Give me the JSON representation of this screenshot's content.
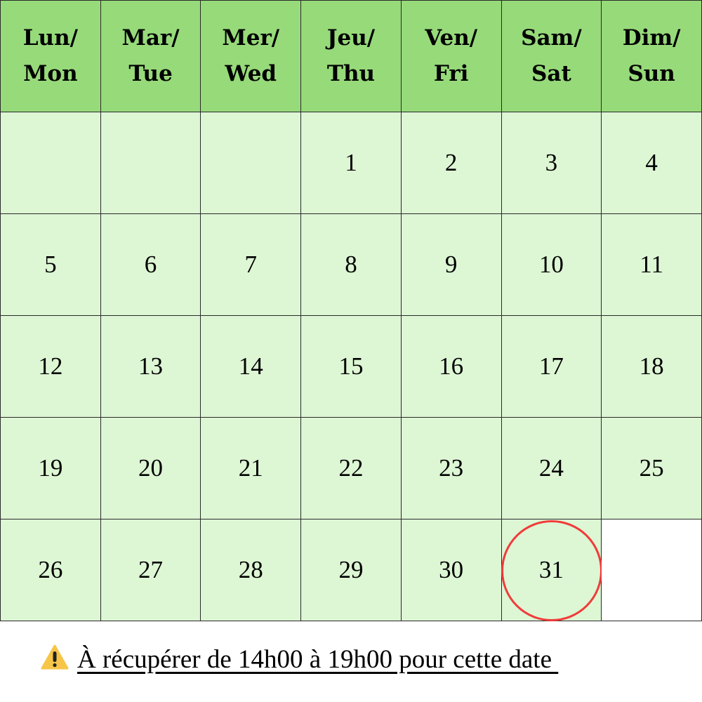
{
  "calendar": {
    "headers": [
      {
        "fr": "Lun/",
        "en": "Mon"
      },
      {
        "fr": "Mar/",
        "en": "Tue"
      },
      {
        "fr": "Mer/",
        "en": "Wed"
      },
      {
        "fr": "Jeu/",
        "en": "Thu"
      },
      {
        "fr": "Ven/",
        "en": "Fri"
      },
      {
        "fr": "Sam/",
        "en": "Sat"
      },
      {
        "fr": "Dim/",
        "en": "Sun"
      }
    ],
    "weeks": [
      [
        "",
        "",
        "",
        "1",
        "2",
        "3",
        "4"
      ],
      [
        "5",
        "6",
        "7",
        "8",
        "9",
        "10",
        "11"
      ],
      [
        "12",
        "13",
        "14",
        "15",
        "16",
        "17",
        "18"
      ],
      [
        "19",
        "20",
        "21",
        "22",
        "23",
        "24",
        "25"
      ],
      [
        "26",
        "27",
        "28",
        "29",
        "30",
        "31",
        ""
      ]
    ],
    "highlighted_day": "31",
    "colors": {
      "header": "#97da7a",
      "cell": "#ddf6d4",
      "highlight": "#f03b3b",
      "warning": "#f7c548"
    }
  },
  "note": {
    "icon": "warning-icon",
    "text": "À récupérer de 14h00 à 19h00 pour cette date"
  }
}
